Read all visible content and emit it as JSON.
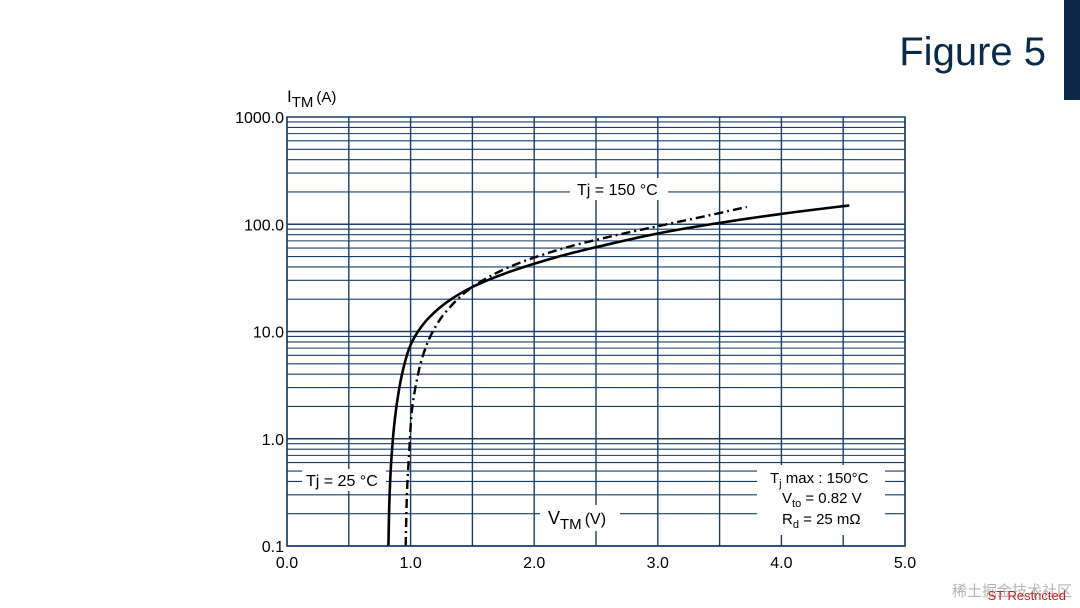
{
  "slide": {
    "title": "Figure 5",
    "footer": "ST Restricted",
    "watermark": "稀土掘金技术社区"
  },
  "colors": {
    "grid": "#1a3d6b",
    "curve": "#000000",
    "title": "#0b2a4a",
    "footer": "#d0201a"
  },
  "chart_data": {
    "type": "line",
    "xlabel_main": "V",
    "xlabel_sub": "TM",
    "xlabel_unit": "(V)",
    "ylabel_main": "I",
    "ylabel_sub": "TM",
    "ylabel_unit": "(A)",
    "xlim": [
      0,
      5
    ],
    "ylim": [
      0.1,
      1000
    ],
    "yscale": "log",
    "xticks": [
      0,
      0.5,
      1,
      1.5,
      2,
      2.5,
      3,
      3.5,
      4,
      4.5,
      5
    ],
    "xtick_labels": [
      "0.0",
      "1.0",
      "2.0",
      "3.0",
      "4.0",
      "5.0"
    ],
    "xtick_label_values": [
      0,
      1,
      2,
      3,
      4,
      5
    ],
    "ytick_labels": [
      "0.1",
      "1.0",
      "10.0",
      "100.0",
      "1000.0"
    ],
    "ytick_label_values": [
      0.1,
      1,
      10,
      100,
      1000
    ],
    "grid": true,
    "series": [
      {
        "name": "Tj = 25 °C",
        "style": "solid",
        "x": [
          0.82,
          0.83,
          0.85,
          0.88,
          0.92,
          0.96,
          1.0,
          1.06,
          1.15,
          1.3,
          1.5,
          1.8,
          2.2,
          2.6,
          3.0,
          3.5,
          4.0,
          4.55
        ],
        "y": [
          0.1,
          0.3,
          0.8,
          1.8,
          3.5,
          5.5,
          7.5,
          10.0,
          13.5,
          19.0,
          26.0,
          36.0,
          50.0,
          65.0,
          82.0,
          103.0,
          125.0,
          150.0
        ]
      },
      {
        "name": "Tj = 150 °C",
        "style": "dashdot",
        "x": [
          0.96,
          0.97,
          0.99,
          1.01,
          1.05,
          1.1,
          1.18,
          1.3,
          1.5,
          1.8,
          2.2,
          2.6,
          3.0,
          3.4,
          3.72
        ],
        "y": [
          0.1,
          0.3,
          0.8,
          1.8,
          3.5,
          6.0,
          10.0,
          16.0,
          26.0,
          40.0,
          58.0,
          76.0,
          96.0,
          120.0,
          145.0
        ]
      }
    ],
    "annotations": {
      "tj150": "Tj = 150 °C",
      "tj25": "Tj = 25 °C",
      "box": {
        "line1_main": "T",
        "line1_sub": "j",
        "line1_rest": " max : 150°C",
        "line2_main": "V",
        "line2_sub": "to",
        "line2_rest": " = 0.82 V",
        "line3_main": "R",
        "line3_sub": "d",
        "line3_rest": " = 25 mΩ"
      }
    }
  }
}
